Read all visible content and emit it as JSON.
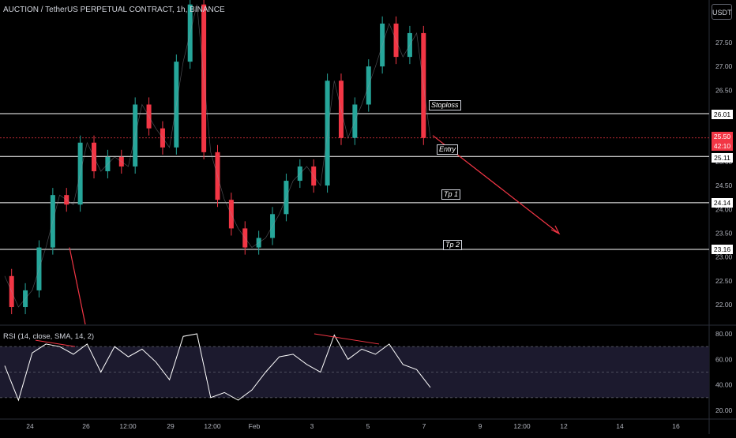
{
  "header": {
    "title": "AUCTION / TetherUS PERPETUAL CONTRACT, 1h, BINANCE",
    "currency_button": "USDT"
  },
  "rsi_header": "RSI (14, close, SMA, 14, 2)",
  "annotations": {
    "stoploss": "Stoploss",
    "entry": "Entry",
    "tp1": "Tp 1",
    "tp2": "Tp 2"
  },
  "levels": {
    "stoploss": "26.01",
    "entry": "25.11",
    "tp1": "24.14",
    "tp2": "23.16",
    "current_price": "25.50",
    "countdown": "42:10"
  },
  "colors": {
    "up": "#26a69a",
    "down": "#f23645",
    "level_line": "#ffffff",
    "rsi_line": "#ffffff",
    "rsi_band": "#1c1a2e",
    "arrow": "#f23645"
  },
  "chart_data": [
    {
      "type": "line",
      "title": "AUCTION / TetherUS PERPETUAL CONTRACT, 1h, BINANCE",
      "note_series": "close price, approximate",
      "x_ticks": [
        "24",
        "26",
        "12:00",
        "29",
        "12:00",
        "Feb",
        "3",
        "5",
        "7",
        "9",
        "12:00",
        "12",
        "14",
        "16"
      ],
      "y_ticks": [
        "27.50",
        "27.00",
        "26.50",
        "26.00",
        "25.50",
        "25.00",
        "24.50",
        "24.00",
        "23.50",
        "23.00",
        "22.50",
        "22.00"
      ],
      "ylim": [
        21.85,
        28.4
      ],
      "x": [
        "23",
        "23 12:00",
        "24",
        "24 12:00",
        "25",
        "25 12:00",
        "26",
        "26 12:00",
        "27",
        "27 12:00",
        "28",
        "28 12:00",
        "29",
        "29 12:00",
        "30",
        "30 12:00",
        "31",
        "31 12:00",
        "Feb",
        "1 12:00",
        "2",
        "2 12:00",
        "3",
        "3 12:00",
        "4",
        "4 12:00",
        "5",
        "5 12:00",
        "6",
        "6 12:00",
        "7",
        "7 06:00"
      ],
      "close": [
        22.6,
        21.95,
        22.3,
        23.2,
        24.3,
        24.1,
        25.4,
        24.8,
        25.1,
        24.9,
        26.2,
        25.7,
        25.3,
        27.1,
        28.3,
        25.2,
        24.2,
        23.6,
        23.2,
        23.4,
        23.9,
        24.6,
        24.9,
        24.5,
        26.7,
        25.5,
        26.2,
        27.0,
        27.9,
        27.2,
        27.7,
        25.5
      ],
      "horizontal_levels": [
        {
          "label": "Stoploss",
          "value": 26.01
        },
        {
          "label": "Entry",
          "value": 25.11
        },
        {
          "label": "Tp 1",
          "value": 24.14
        },
        {
          "label": "Tp 2",
          "value": 23.16
        }
      ],
      "current_price": 25.5
    },
    {
      "type": "line",
      "title": "RSI (14, close, SMA, 14, 2)",
      "y_ticks": [
        "80.00",
        "60.00",
        "40.00",
        "20.00"
      ],
      "ylim": [
        20,
        80
      ],
      "bands": [
        30,
        70
      ],
      "values": [
        55,
        28,
        65,
        72,
        70,
        64,
        72,
        50,
        70,
        62,
        68,
        58,
        44,
        78,
        80,
        30,
        34,
        28,
        36,
        50,
        62,
        64,
        56,
        50,
        79,
        60,
        68,
        64,
        72,
        56,
        52,
        38
      ]
    }
  ]
}
